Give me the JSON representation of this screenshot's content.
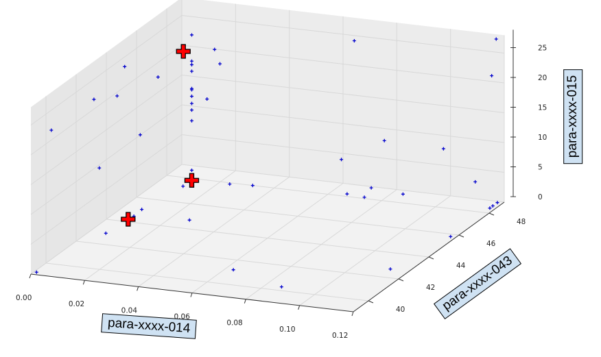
{
  "chart_data": {
    "type": "scatter3d",
    "xlabel": "para-xxxx-014",
    "ylabel": "para-xxxx-043",
    "zlabel": "para-xxxx-015",
    "xlim": [
      0.0,
      0.12
    ],
    "ylim": [
      39,
      49
    ],
    "zlim": [
      0,
      28
    ],
    "xticks": [
      "0.00",
      "0.02",
      "0.04",
      "0.06",
      "0.08",
      "0.10",
      "0.12"
    ],
    "yticks": [
      "40",
      "42",
      "44",
      "46",
      "48"
    ],
    "zticks": [
      "0",
      "5",
      "10",
      "15",
      "20",
      "25"
    ],
    "grid": true,
    "colors": {
      "points": "#0000cc",
      "highlight": "#ff0000",
      "label_box": "#cfe2f3",
      "pane": "#f0f0f0"
    },
    "series": [
      {
        "marker": "plus-small",
        "color": "#0000cc",
        "points": [
          [
            0.001,
            39.2,
            0
          ],
          [
            0.063,
            41.2,
            0
          ],
          [
            0.086,
            40.3,
            0
          ],
          [
            0.113,
            42.7,
            0
          ],
          [
            0.118,
            45.8,
            0
          ],
          [
            0.118,
            48.9,
            0
          ],
          [
            0.118,
            48.4,
            0
          ],
          [
            0.118,
            48.6,
            0
          ],
          [
            0.024,
            47.9,
            0
          ],
          [
            0.032,
            48.0,
            0
          ],
          [
            0.066,
            48.2,
            0
          ],
          [
            0.073,
            48.1,
            0
          ],
          [
            0.084,
            48.7,
            0
          ],
          [
            0.075,
            48.2,
            1.5
          ],
          [
            0.112,
            48.5,
            3.9
          ],
          [
            0.103,
            48.0,
            9.9
          ],
          [
            0.081,
            48.0,
            10.1
          ],
          [
            0.065,
            48.0,
            6.1
          ],
          [
            0.067,
            48.5,
            25.2
          ],
          [
            0.117,
            49.0,
            27.2
          ],
          [
            0.117,
            48.7,
            21.6
          ],
          [
            0.015,
            48.5,
            21.0
          ],
          [
            0.017,
            48.5,
            18.7
          ],
          [
            0.015,
            48.0,
            13.6
          ],
          [
            0.002,
            40.0,
            22.4
          ],
          [
            0.001,
            43.0,
            22.0
          ],
          [
            0.004,
            44.0,
            20.9
          ],
          [
            0.004,
            44.5,
            24.9
          ],
          [
            0.008,
            46.0,
            20.6
          ],
          [
            0.007,
            45.0,
            12.7
          ],
          [
            0.003,
            43.0,
            10.6
          ],
          [
            0.006,
            42.9,
            0
          ],
          [
            0.007,
            45.1,
            0
          ],
          [
            0.027,
            44.7,
            0
          ],
          [
            0.01,
            47.3,
            0
          ],
          [
            0.011,
            47.7,
            24.7
          ],
          [
            0.011,
            47.7,
            20.3
          ],
          [
            0.011,
            47.7,
            19.7
          ],
          [
            0.011,
            47.7,
            18.6
          ],
          [
            0.011,
            47.7,
            15.7
          ],
          [
            0.011,
            47.7,
            15.5
          ],
          [
            0.011,
            47.7,
            14.4
          ],
          [
            0.011,
            47.7,
            13.2
          ],
          [
            0.011,
            47.7,
            12.1
          ],
          [
            0.011,
            47.7,
            10.3
          ],
          [
            0.011,
            47.7,
            2.0
          ],
          [
            0.008,
            44.4,
            0.2
          ]
        ]
      },
      {
        "marker": "plus-large",
        "color": "#ff0000",
        "points": [
          [
            0.009,
            47.5,
            22.2
          ],
          [
            0.011,
            47.7,
            0.3
          ],
          [
            0.007,
            44.2,
            0
          ]
        ]
      }
    ]
  }
}
